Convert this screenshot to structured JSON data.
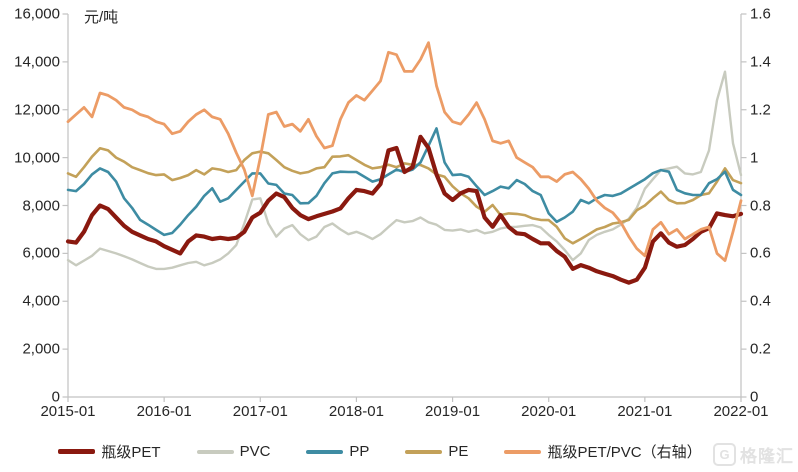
{
  "chart_data": {
    "type": "line",
    "unit_label": "元/吨",
    "x": {
      "start": "2015-01",
      "end": "2022-01",
      "interval": "monthly",
      "count": 85,
      "tick_labels": [
        "2015-01",
        "2016-01",
        "2017-01",
        "2018-01",
        "2019-01",
        "2020-01",
        "2021-01",
        "2022-01"
      ]
    },
    "left_axis": {
      "min": 0,
      "max": 16000,
      "tick_step": 2000,
      "tick_labels": [
        "0",
        "2,000",
        "4,000",
        "6,000",
        "8,000",
        "10,000",
        "12,000",
        "14,000",
        "16,000"
      ]
    },
    "right_axis": {
      "min": 0,
      "max": 1.6,
      "tick_step": 0.2,
      "tick_labels": [
        "0",
        "0.2",
        "0.4",
        "0.6",
        "0.8",
        "1",
        "1.2",
        "1.4",
        "1.6"
      ]
    },
    "grid": "off",
    "legend_position": "bottom",
    "series": [
      {
        "id": "pet",
        "name": "瓶级PET",
        "axis": "left",
        "color": "#8A190F",
        "values": [
          6500,
          6450,
          6900,
          7600,
          8000,
          7850,
          7500,
          7150,
          6900,
          6750,
          6600,
          6500,
          6300,
          6150,
          6000,
          6500,
          6750,
          6700,
          6600,
          6650,
          6600,
          6650,
          6900,
          7500,
          7700,
          8200,
          8500,
          8350,
          7900,
          7600,
          7430,
          7550,
          7650,
          7750,
          7880,
          8300,
          8650,
          8600,
          8500,
          8900,
          10300,
          10400,
          9400,
          9600,
          10870,
          10400,
          9300,
          8500,
          8230,
          8510,
          8650,
          8600,
          7500,
          7110,
          7600,
          7100,
          6840,
          6800,
          6600,
          6420,
          6420,
          6100,
          5860,
          5350,
          5510,
          5400,
          5250,
          5150,
          5050,
          4900,
          4780,
          4900,
          5400,
          6490,
          6840,
          6450,
          6280,
          6350,
          6600,
          6900,
          7050,
          7670,
          7600,
          7550,
          7650
        ]
      },
      {
        "id": "pvc",
        "name": "PVC",
        "axis": "left",
        "color": "#C8CBBF",
        "values": [
          5720,
          5500,
          5700,
          5900,
          6200,
          6100,
          6000,
          5880,
          5750,
          5600,
          5450,
          5350,
          5350,
          5400,
          5500,
          5600,
          5650,
          5500,
          5600,
          5750,
          6000,
          6350,
          7250,
          8250,
          8300,
          7250,
          6700,
          7040,
          7180,
          6800,
          6550,
          6700,
          7100,
          7250,
          7000,
          6800,
          6900,
          6770,
          6600,
          6800,
          7100,
          7390,
          7300,
          7350,
          7500,
          7300,
          7200,
          6980,
          6950,
          7000,
          6900,
          6980,
          6840,
          6900,
          7040,
          7100,
          7110,
          7150,
          7180,
          7080,
          6770,
          6500,
          6140,
          5720,
          6000,
          6560,
          6770,
          6900,
          7000,
          7200,
          7450,
          7900,
          8700,
          9100,
          9480,
          9550,
          9620,
          9340,
          9300,
          9400,
          10300,
          12400,
          13590,
          10600,
          9270
        ]
      },
      {
        "id": "pp",
        "name": "PP",
        "axis": "left",
        "color": "#3E8CA3",
        "values": [
          8650,
          8600,
          8900,
          9300,
          9550,
          9400,
          9000,
          8300,
          7900,
          7400,
          7200,
          6980,
          6770,
          6850,
          7200,
          7600,
          7950,
          8400,
          8720,
          8160,
          8300,
          8650,
          9000,
          9340,
          9340,
          8920,
          8860,
          8500,
          8440,
          8090,
          8100,
          8400,
          8930,
          9340,
          9410,
          9400,
          9400,
          9200,
          9000,
          9100,
          9300,
          9500,
          9400,
          9500,
          9800,
          10500,
          11220,
          9800,
          9270,
          9300,
          9200,
          8800,
          8440,
          8600,
          8790,
          8720,
          9060,
          8900,
          8600,
          8440,
          7670,
          7320,
          7500,
          7740,
          8230,
          8090,
          8300,
          8440,
          8400,
          8500,
          8700,
          8900,
          9100,
          9350,
          9480,
          9410,
          8650,
          8510,
          8440,
          8440,
          8930,
          9100,
          9410,
          8650,
          8440
        ]
      },
      {
        "id": "pe",
        "name": "PE",
        "axis": "left",
        "color": "#C3A159",
        "values": [
          9340,
          9200,
          9600,
          10040,
          10390,
          10300,
          10000,
          9830,
          9600,
          9480,
          9350,
          9270,
          9300,
          9060,
          9150,
          9270,
          9480,
          9300,
          9550,
          9500,
          9400,
          9480,
          9900,
          10180,
          10250,
          10180,
          9900,
          9600,
          9450,
          9340,
          9400,
          9550,
          9600,
          10040,
          10050,
          10100,
          9900,
          9700,
          9550,
          9600,
          9700,
          9600,
          9760,
          9700,
          9690,
          9550,
          9300,
          9200,
          8800,
          8510,
          8300,
          7950,
          7740,
          8020,
          7600,
          7670,
          7650,
          7600,
          7460,
          7400,
          7390,
          7110,
          6630,
          6420,
          6600,
          6800,
          7000,
          7100,
          7250,
          7300,
          7400,
          7800,
          8000,
          8300,
          8580,
          8230,
          8090,
          8100,
          8230,
          8440,
          8510,
          9000,
          9550,
          9060,
          8930
        ]
      },
      {
        "id": "pet-pvc-ratio",
        "name": "瓶级PET/PVC（右轴）",
        "axis": "right",
        "color": "#EC9C66",
        "values": [
          1.15,
          1.18,
          1.21,
          1.17,
          1.27,
          1.26,
          1.24,
          1.21,
          1.2,
          1.18,
          1.17,
          1.15,
          1.14,
          1.1,
          1.11,
          1.15,
          1.18,
          1.2,
          1.17,
          1.16,
          1.1,
          1.02,
          0.95,
          0.84,
          1.0,
          1.18,
          1.19,
          1.13,
          1.14,
          1.11,
          1.16,
          1.09,
          1.04,
          1.05,
          1.16,
          1.23,
          1.26,
          1.24,
          1.28,
          1.32,
          1.44,
          1.43,
          1.36,
          1.36,
          1.41,
          1.48,
          1.3,
          1.19,
          1.15,
          1.14,
          1.18,
          1.23,
          1.16,
          1.07,
          1.06,
          1.07,
          1.0,
          0.98,
          0.96,
          0.92,
          0.92,
          0.9,
          0.93,
          0.94,
          0.91,
          0.87,
          0.82,
          0.79,
          0.77,
          0.73,
          0.67,
          0.62,
          0.59,
          0.7,
          0.73,
          0.68,
          0.7,
          0.66,
          0.68,
          0.7,
          0.71,
          0.6,
          0.57,
          0.69,
          0.82
        ]
      }
    ],
    "axis_color": "#c2c2c2",
    "text_color": "#262626"
  },
  "watermark": {
    "logo_letter": "G",
    "text": "格隆汇"
  }
}
